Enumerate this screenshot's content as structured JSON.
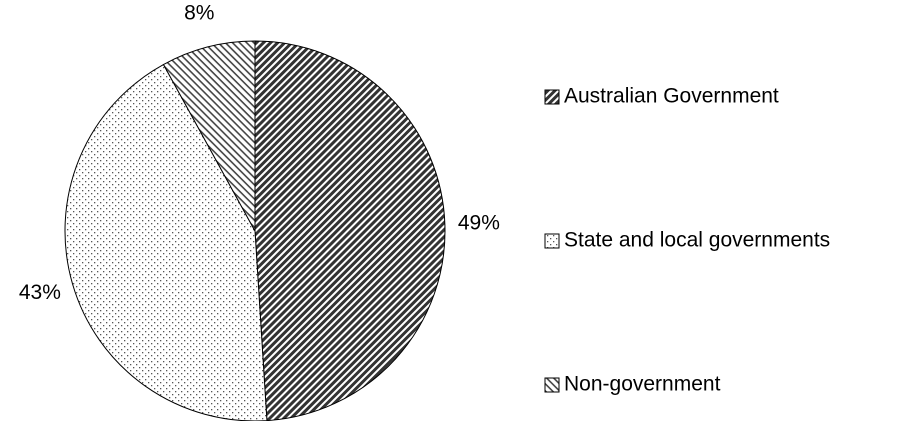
{
  "chart_data": {
    "type": "pie",
    "categories": [
      "Australian Government",
      "State and local governments",
      "Non-government"
    ],
    "values": [
      49,
      43,
      8
    ],
    "value_labels": [
      "49%",
      "43%",
      "8%"
    ],
    "patterns": [
      "dense-diagonal",
      "dots",
      "light-diagonal"
    ],
    "legend": "right"
  }
}
